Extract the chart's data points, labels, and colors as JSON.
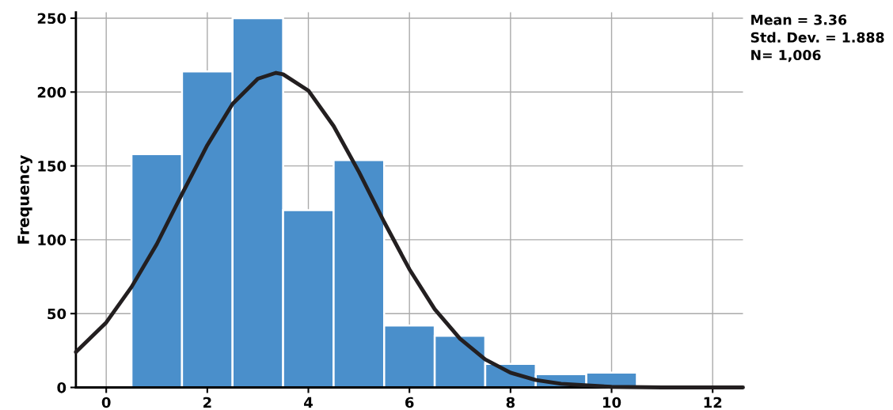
{
  "chart_data": {
    "type": "histogram",
    "bins": [
      0.5,
      1.5,
      2.5,
      3.5,
      4.5,
      5.5,
      6.5,
      7.5,
      8.5,
      9.5,
      10.5
    ],
    "values": [
      158,
      214,
      250,
      120,
      154,
      42,
      35,
      16,
      9,
      10
    ],
    "color": "#4a8fcb",
    "series": [
      {
        "type": "line",
        "color": "#231f20",
        "x": [
          -0.6,
          0,
          0.5,
          1,
          1.5,
          2,
          2.5,
          3,
          3.36,
          3.5,
          4,
          4.5,
          5,
          5.5,
          6,
          6.5,
          7,
          7.5,
          8,
          8.5,
          9,
          10,
          11,
          12.6
        ],
        "values": [
          24,
          44,
          68,
          97,
          131,
          164,
          192,
          209,
          213,
          212,
          201,
          177,
          146,
          112,
          80,
          53,
          33,
          19,
          10,
          5,
          2.5,
          0.4,
          0,
          0
        ]
      }
    ],
    "ylabel": "Frequency",
    "annotations": [
      "Mean = 3.36",
      "Std. Dev. = 1.888",
      "N= 1,006"
    ],
    "xlim": [
      -0.6,
      12.6
    ],
    "xticks": [
      0,
      2,
      4,
      6,
      8,
      10,
      12
    ],
    "ylim": [
      0,
      254
    ],
    "yticks": [
      0,
      50,
      100,
      150,
      200,
      250
    ],
    "grid": true,
    "legend": false
  }
}
